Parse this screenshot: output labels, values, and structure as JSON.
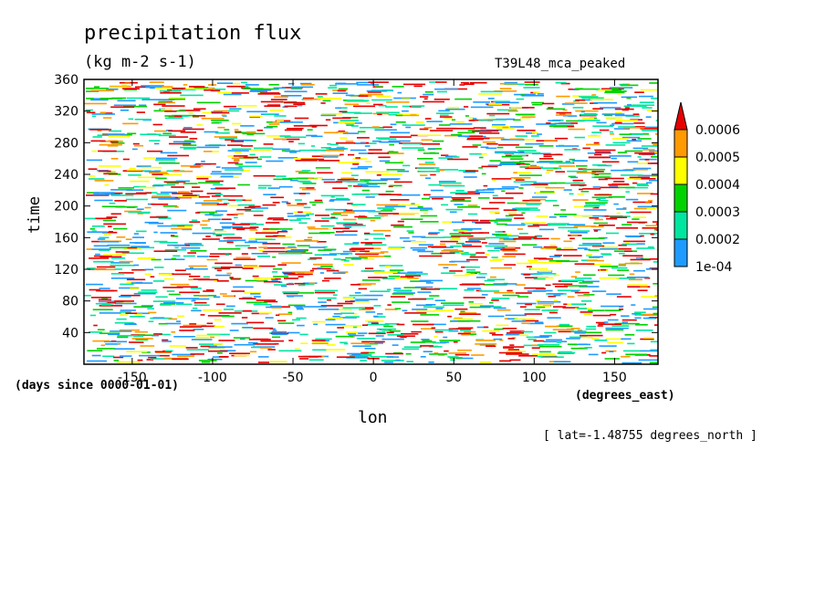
{
  "chart_data": {
    "type": "heatmap",
    "title": "precipitation flux",
    "units": "(kg m-2 s-1)",
    "model_label": "T39L48_mca_peaked",
    "xlabel": "lon",
    "ylabel": "time",
    "x_units": "(degrees_east)",
    "y_units": "(days since 0000-01-01)",
    "slice_label": "[ lat=-1.48755 degrees_north ]",
    "xlim": [
      -180,
      177
    ],
    "ylim": [
      0,
      360
    ],
    "x_ticks": [
      -150,
      -100,
      -50,
      0,
      50,
      100,
      150
    ],
    "x_tick_labels": [
      "-150",
      "-100",
      "-50",
      "0",
      "50",
      "100",
      "150"
    ],
    "y_ticks": [
      40,
      80,
      120,
      160,
      200,
      240,
      280,
      320,
      360
    ],
    "y_tick_labels": [
      "40",
      "80",
      "120",
      "160",
      "200",
      "240",
      "280",
      "320",
      "360"
    ],
    "colorbar": {
      "levels": [
        0.0001,
        0.0002,
        0.0003,
        0.0004,
        0.0005,
        0.0006
      ],
      "labels": [
        "1e-04",
        "0.0002",
        "0.0003",
        "0.0004",
        "0.0005",
        "0.0006"
      ],
      "colors": [
        "#1e9bff",
        "#00e6a0",
        "#00d200",
        "#ffff00",
        "#ff9a00",
        "#e60000"
      ],
      "extend": "max"
    }
  }
}
